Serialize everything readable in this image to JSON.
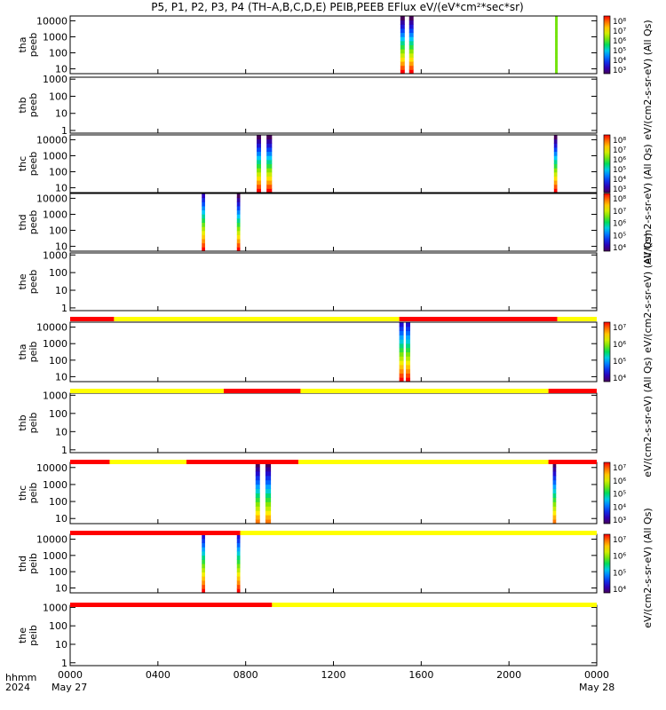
{
  "title": "P5, P1, P2, P3, P4 (TH–A,B,C,D,E) PEIB,PEEB EFlux eV/(eV*cm²*sec*sr)",
  "footer": {
    "hhmm_label": "hhmm",
    "year_label": "2024",
    "start_date": "May 27",
    "end_date": "May 28"
  },
  "chart_data": {
    "type": "heatmap",
    "x": {
      "range_hours": [
        0,
        24
      ],
      "tick_hours": [
        0,
        4,
        8,
        12,
        16,
        20,
        24
      ],
      "tick_labels": [
        "0000",
        "0400",
        "0800",
        "1200",
        "1600",
        "2000",
        "0000"
      ]
    },
    "panels": [
      {
        "ylabel": [
          "tha",
          "peeb"
        ],
        "ylim": [
          5,
          20000
        ],
        "scale": "log",
        "yticks": [
          10,
          100,
          1000,
          10000
        ],
        "ytick_labels": [
          "10",
          "100",
          "1000",
          "10000"
        ],
        "colorbar": {
          "tick_labels": [
            "10⁸",
            "10⁷",
            "10⁶",
            "10⁵",
            "10⁴",
            "10³"
          ],
          "min_exp": 3,
          "max_exp": 8
        },
        "bursts": [
          {
            "start_hour": 15.05,
            "end_hour": 15.25,
            "cmin": 3,
            "cmax": 8
          },
          {
            "start_hour": 15.45,
            "end_hour": 15.65,
            "cmin": 3,
            "cmax": 8
          },
          {
            "start_hour": 22.1,
            "end_hour": 22.2,
            "cmin": 6,
            "cmax": 6
          }
        ]
      },
      {
        "ylabel": [
          "thb",
          "peeb"
        ],
        "ylim": [
          0.7,
          1300
        ],
        "scale": "log",
        "yticks": [
          1,
          10,
          100,
          1000
        ],
        "ytick_labels": [
          "1",
          "10",
          "100",
          "1000"
        ],
        "bursts": []
      },
      {
        "ylabel": [
          "thc",
          "peeb"
        ],
        "ylim": [
          5,
          20000
        ],
        "scale": "log",
        "yticks": [
          10,
          100,
          1000,
          10000
        ],
        "ytick_labels": [
          "10",
          "100",
          "1000",
          "10000"
        ],
        "colorbar": {
          "tick_labels": [
            "10⁸",
            "10⁷",
            "10⁶",
            "10⁵",
            "10⁴",
            "10³"
          ],
          "min_exp": 3,
          "max_exp": 8
        },
        "bursts": [
          {
            "start_hour": 8.5,
            "end_hour": 8.7,
            "cmin": 3,
            "cmax": 8
          },
          {
            "start_hour": 8.95,
            "end_hour": 9.2,
            "cmin": 3,
            "cmax": 8
          },
          {
            "start_hour": 22.05,
            "end_hour": 22.2,
            "cmin": 3,
            "cmax": 8
          }
        ]
      },
      {
        "ylabel": [
          "thd",
          "peeb"
        ],
        "ylim": [
          5,
          20000
        ],
        "scale": "log",
        "yticks": [
          10,
          100,
          1000,
          10000
        ],
        "ytick_labels": [
          "10",
          "100",
          "1000",
          "10000"
        ],
        "colorbar": {
          "tick_labels": [
            "10⁸",
            "10⁷",
            "10⁶",
            "10⁵",
            "10⁴"
          ],
          "min_exp": 3.5,
          "max_exp": 8
        },
        "bursts": [
          {
            "start_hour": 6.0,
            "end_hour": 6.15,
            "cmin": 4,
            "cmax": 8
          },
          {
            "start_hour": 7.6,
            "end_hour": 7.75,
            "cmin": 3.5,
            "cmax": 8
          }
        ]
      },
      {
        "ylabel": [
          "the",
          "peeb"
        ],
        "ylim": [
          0.7,
          1300
        ],
        "scale": "log",
        "yticks": [
          1,
          10,
          100,
          1000
        ],
        "ytick_labels": [
          "1",
          "10",
          "100",
          "1000"
        ],
        "bursts": []
      },
      {
        "ylabel": [
          "tha",
          "peib"
        ],
        "ylim": [
          5,
          20000
        ],
        "scale": "log",
        "yticks": [
          10,
          100,
          1000,
          10000
        ],
        "ytick_labels": [
          "10",
          "100",
          "1000",
          "10000"
        ],
        "colorbar": {
          "tick_labels": [
            "10⁷",
            "10⁶",
            "10⁵",
            "10⁴"
          ],
          "min_exp": 3.5,
          "max_exp": 7
        },
        "bursts": [
          {
            "start_hour": 15.0,
            "end_hour": 15.2,
            "cmin": 4,
            "cmax": 7
          },
          {
            "start_hour": 15.3,
            "end_hour": 15.5,
            "cmin": 4,
            "cmax": 7
          }
        ],
        "mode_bar": [
          {
            "start_hour": 0,
            "end_hour": 2.0,
            "color": "#ff0000"
          },
          {
            "start_hour": 2.0,
            "end_hour": 15.0,
            "color": "#ffff00"
          },
          {
            "start_hour": 15.0,
            "end_hour": 22.2,
            "color": "#ff0000"
          },
          {
            "start_hour": 22.2,
            "end_hour": 24,
            "color": "#ffff00"
          }
        ]
      },
      {
        "ylabel": [
          "thb",
          "peib"
        ],
        "ylim": [
          0.7,
          1300
        ],
        "scale": "log",
        "yticks": [
          1,
          10,
          100,
          1000
        ],
        "ytick_labels": [
          "1",
          "10",
          "100",
          "1000"
        ],
        "bursts": [],
        "mode_bar": [
          {
            "start_hour": 0,
            "end_hour": 7.0,
            "color": "#ffff00"
          },
          {
            "start_hour": 7.0,
            "end_hour": 10.5,
            "color": "#ff0000"
          },
          {
            "start_hour": 10.5,
            "end_hour": 21.8,
            "color": "#ffff00"
          },
          {
            "start_hour": 21.8,
            "end_hour": 24,
            "color": "#ff0000"
          }
        ]
      },
      {
        "ylabel": [
          "thc",
          "peib"
        ],
        "ylim": [
          5,
          20000
        ],
        "scale": "log",
        "yticks": [
          10,
          100,
          1000,
          10000
        ],
        "ytick_labels": [
          "10",
          "100",
          "1000",
          "10000"
        ],
        "colorbar": {
          "tick_labels": [
            "10⁷",
            "10⁶",
            "10⁵",
            "10⁴",
            "10³"
          ],
          "min_exp": 3,
          "max_exp": 7.5
        },
        "bursts": [
          {
            "start_hour": 8.45,
            "end_hour": 8.65,
            "cmin": 3,
            "cmax": 7
          },
          {
            "start_hour": 8.9,
            "end_hour": 9.15,
            "cmin": 3,
            "cmax": 7
          },
          {
            "start_hour": 22.0,
            "end_hour": 22.15,
            "cmin": 3,
            "cmax": 7
          }
        ],
        "mode_bar": [
          {
            "start_hour": 0,
            "end_hour": 1.8,
            "color": "#ff0000"
          },
          {
            "start_hour": 1.8,
            "end_hour": 5.3,
            "color": "#ffff00"
          },
          {
            "start_hour": 5.3,
            "end_hour": 10.4,
            "color": "#ff0000"
          },
          {
            "start_hour": 10.4,
            "end_hour": 21.8,
            "color": "#ffff00"
          },
          {
            "start_hour": 21.8,
            "end_hour": 24,
            "color": "#ff0000"
          }
        ]
      },
      {
        "ylabel": [
          "thd",
          "peib"
        ],
        "ylim": [
          5,
          20000
        ],
        "scale": "log",
        "yticks": [
          10,
          100,
          1000,
          10000
        ],
        "ytick_labels": [
          "10",
          "100",
          "1000",
          "10000"
        ],
        "colorbar": {
          "tick_labels": [
            "10⁷",
            "10⁶",
            "10⁵",
            "10⁴"
          ],
          "min_exp": 3.5,
          "max_exp": 7
        },
        "bursts": [
          {
            "start_hour": 6.0,
            "end_hour": 6.15,
            "cmin": 4,
            "cmax": 7
          },
          {
            "start_hour": 7.6,
            "end_hour": 7.75,
            "cmin": 4,
            "cmax": 7
          }
        ],
        "mode_bar": [
          {
            "start_hour": 0,
            "end_hour": 7.75,
            "color": "#ff0000"
          },
          {
            "start_hour": 7.75,
            "end_hour": 24,
            "color": "#ffff00"
          }
        ]
      },
      {
        "ylabel": [
          "the",
          "peib"
        ],
        "ylim": [
          0.7,
          1300
        ],
        "scale": "log",
        "yticks": [
          1,
          10,
          100,
          1000
        ],
        "ytick_labels": [
          "1",
          "10",
          "100",
          "1000"
        ],
        "bursts": [],
        "mode_bar": [
          {
            "start_hour": 0,
            "end_hour": 9.2,
            "color": "#ff0000"
          },
          {
            "start_hour": 9.2,
            "end_hour": 24,
            "color": "#ffff00"
          }
        ]
      }
    ],
    "colorbar_side_labels": [
      "eV/(cm2-s-sr-eV) (All Qs)",
      "eV/(cm2-s-sr-eV) (All Qs)",
      "eV/(cm2-s-sr-eV) (All Qs)",
      "eV/(cm2-s-sr-eV) (All Qs)",
      "eV/(cm2-s-sr-eV) (All Qs)"
    ]
  }
}
